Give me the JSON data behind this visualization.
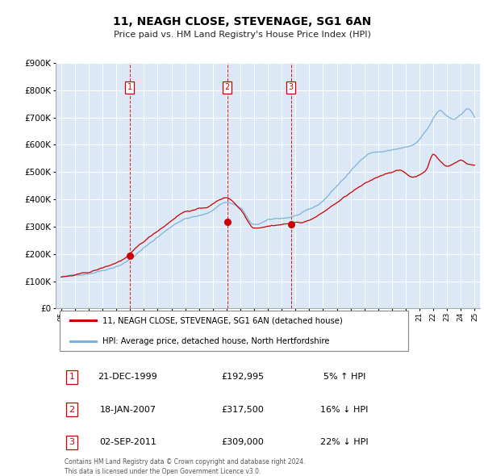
{
  "title": "11, NEAGH CLOSE, STEVENAGE, SG1 6AN",
  "subtitle": "Price paid vs. HM Land Registry's House Price Index (HPI)",
  "legend_line1": "11, NEAGH CLOSE, STEVENAGE, SG1 6AN (detached house)",
  "legend_line2": "HPI: Average price, detached house, North Hertfordshire",
  "footnote1": "Contains HM Land Registry data © Crown copyright and database right 2024.",
  "footnote2": "This data is licensed under the Open Government Licence v3.0.",
  "transactions": [
    {
      "num": 1,
      "date": "21-DEC-1999",
      "price": "£192,995",
      "pct": "5% ↑ HPI",
      "year": 1999.97
    },
    {
      "num": 2,
      "date": "18-JAN-2007",
      "price": "£317,500",
      "pct": "16% ↓ HPI",
      "year": 2007.04
    },
    {
      "num": 3,
      "date": "02-SEP-2011",
      "price": "£309,000",
      "pct": "22% ↓ HPI",
      "year": 2011.67
    }
  ],
  "transaction_values": [
    192995,
    317500,
    309000
  ],
  "hpi_color": "#7ab3d8",
  "price_color": "#cc0000",
  "dashed_color": "#cc0000",
  "plot_bg": "#dce8f5",
  "grid_color": "#ffffff",
  "ylim": [
    0,
    900000
  ],
  "yticks": [
    0,
    100000,
    200000,
    300000,
    400000,
    500000,
    600000,
    700000,
    800000,
    900000
  ],
  "xmin": 1994.6,
  "xmax": 2025.4,
  "seed": 42
}
